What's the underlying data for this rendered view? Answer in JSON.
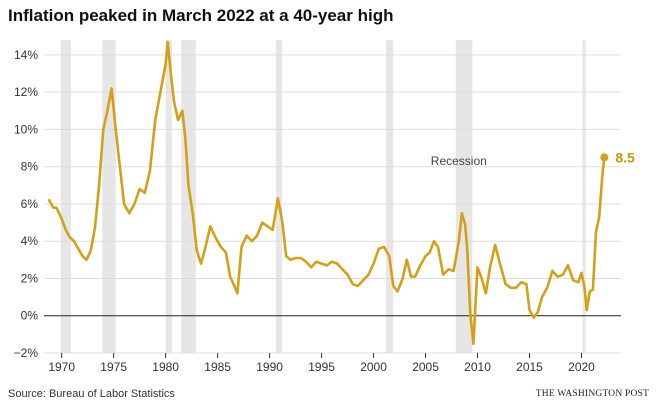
{
  "title": "Inflation peaked in March 2022 at a 40-year high",
  "source": "Source: Bureau of Labor Statistics",
  "publisher": "THE WASHINGTON POST",
  "colors": {
    "line": "#d4a017",
    "recession": "#e6e6e6",
    "grid": "#dddddd",
    "zero": "#222222"
  },
  "chart_data": {
    "type": "line",
    "title": "Inflation peaked in March 2022 at a 40-year high",
    "xlabel": "",
    "ylabel": "",
    "xlim": [
      1968.3,
      2023.8
    ],
    "ylim": [
      -2,
      14.8
    ],
    "x_ticks": [
      1970,
      1975,
      1980,
      1985,
      1990,
      1995,
      2000,
      2005,
      2010,
      2015,
      2020
    ],
    "x_tick_labels": [
      "1970",
      "1975",
      "1980",
      "1985",
      "1990",
      "1995",
      "2000",
      "2005",
      "2010",
      "2015",
      "2020"
    ],
    "y_ticks": [
      -2,
      0,
      2,
      4,
      6,
      8,
      10,
      12,
      14
    ],
    "y_tick_labels": [
      "−2%",
      "0%",
      "2%",
      "4%",
      "6%",
      "8%",
      "10%",
      "12%",
      "14%"
    ],
    "grid": true,
    "annotations": [
      {
        "text": "Recession",
        "x": 2008.2,
        "y": 8.1
      },
      {
        "text": "8.5",
        "x": 2022.2,
        "y": 8.5
      }
    ],
    "recessions": [
      [
        1969.9,
        1970.9
      ],
      [
        1973.9,
        1975.2
      ],
      [
        1980.0,
        1980.6
      ],
      [
        1981.5,
        1982.9
      ],
      [
        1990.6,
        1991.2
      ],
      [
        2001.2,
        2001.9
      ],
      [
        2007.9,
        2009.5
      ],
      [
        2020.1,
        2020.4
      ]
    ],
    "series": [
      {
        "x": [
          1968.8,
          1969.2,
          1969.5,
          1970.0,
          1970.4,
          1970.8,
          1971.2,
          1971.6,
          1972.0,
          1972.4,
          1972.8,
          1973.2,
          1973.6,
          1974.0,
          1974.4,
          1974.8,
          1975.2,
          1975.6,
          1976.0,
          1976.5,
          1977.0,
          1977.5,
          1978.0,
          1978.5,
          1979.0,
          1979.5,
          1980.0,
          1980.2,
          1980.5,
          1980.8,
          1981.2,
          1981.6,
          1981.9,
          1982.2,
          1982.6,
          1983.0,
          1983.4,
          1983.8,
          1984.3,
          1984.8,
          1985.3,
          1985.8,
          1986.2,
          1986.6,
          1986.9,
          1987.3,
          1987.8,
          1988.3,
          1988.8,
          1989.3,
          1989.8,
          1990.3,
          1990.8,
          1991.2,
          1991.6,
          1992.0,
          1992.5,
          1993.0,
          1993.5,
          1994.0,
          1994.5,
          1995.0,
          1995.5,
          1996.0,
          1996.5,
          1997.0,
          1997.5,
          1998.0,
          1998.5,
          1999.0,
          1999.5,
          2000.0,
          2000.5,
          2001.0,
          2001.5,
          2001.9,
          2002.3,
          2002.8,
          2003.2,
          2003.6,
          2004.0,
          2004.5,
          2005.0,
          2005.4,
          2005.8,
          2006.2,
          2006.7,
          2007.2,
          2007.7,
          2008.2,
          2008.5,
          2008.8,
          2009.0,
          2009.3,
          2009.6,
          2010.0,
          2010.4,
          2010.8,
          2011.2,
          2011.7,
          2012.2,
          2012.7,
          2013.2,
          2013.7,
          2014.2,
          2014.7,
          2015.0,
          2015.4,
          2015.8,
          2016.2,
          2016.7,
          2017.2,
          2017.7,
          2018.2,
          2018.7,
          2019.2,
          2019.7,
          2020.0,
          2020.3,
          2020.5,
          2020.8,
          2021.1,
          2021.4,
          2021.7,
          2022.0,
          2022.2
        ],
        "y": [
          6.2,
          5.8,
          5.8,
          5.2,
          4.6,
          4.2,
          4.0,
          3.6,
          3.2,
          3.0,
          3.5,
          4.7,
          7.0,
          10.0,
          11.0,
          12.2,
          10.0,
          8.0,
          6.0,
          5.5,
          6.0,
          6.8,
          6.6,
          7.8,
          10.5,
          12.0,
          13.5,
          14.7,
          13.0,
          11.5,
          10.5,
          11.0,
          9.5,
          7.0,
          5.5,
          3.5,
          2.8,
          3.6,
          4.8,
          4.2,
          3.7,
          3.4,
          2.1,
          1.6,
          1.2,
          3.7,
          4.3,
          4.0,
          4.3,
          5.0,
          4.8,
          4.6,
          6.3,
          5.1,
          3.2,
          3.0,
          3.1,
          3.1,
          2.9,
          2.6,
          2.9,
          2.8,
          2.7,
          2.9,
          2.8,
          2.5,
          2.2,
          1.7,
          1.6,
          1.9,
          2.2,
          2.8,
          3.6,
          3.7,
          3.2,
          1.6,
          1.3,
          2.0,
          3.0,
          2.1,
          2.1,
          2.7,
          3.2,
          3.4,
          4.0,
          3.7,
          2.2,
          2.5,
          2.4,
          4.0,
          5.5,
          4.9,
          3.7,
          0.1,
          -1.5,
          2.6,
          2.0,
          1.2,
          2.6,
          3.8,
          2.7,
          1.7,
          1.5,
          1.5,
          1.8,
          1.7,
          0.3,
          -0.1,
          0.2,
          1.0,
          1.5,
          2.4,
          2.1,
          2.2,
          2.7,
          1.9,
          1.8,
          2.3,
          1.5,
          0.3,
          1.3,
          1.4,
          4.5,
          5.3,
          7.5,
          8.5
        ]
      }
    ]
  }
}
